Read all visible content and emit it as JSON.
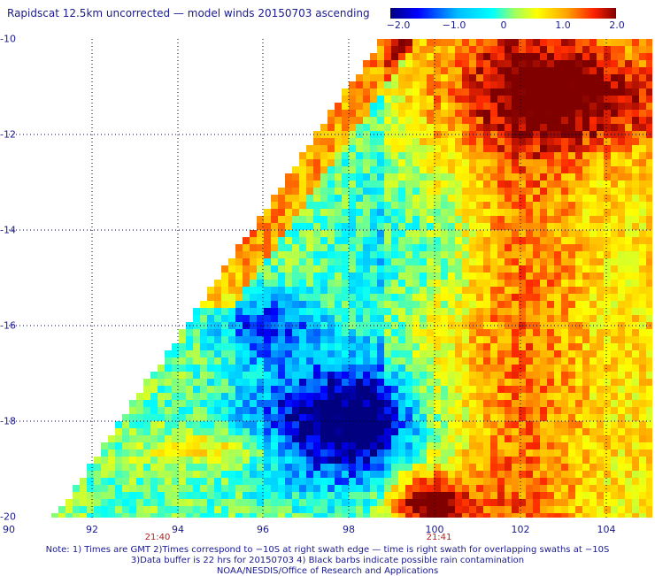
{
  "title": "Rapidscat 12.5km uncorrected — model winds 20150703 ascending",
  "colorbar": {
    "ticks": [
      "−2.0",
      "−1.0",
      "0",
      "1.0",
      "2.0"
    ],
    "min": -2.0,
    "max": 2.0,
    "colors": [
      "#000080",
      "#0000ff",
      "#00bfff",
      "#00ffff",
      "#7fff7f",
      "#ffff00",
      "#ffa500",
      "#ff3300",
      "#a00000",
      "#800000"
    ]
  },
  "map": {
    "lon_ticks": [
      "90",
      "92",
      "94",
      "96",
      "98",
      "100",
      "102",
      "104"
    ],
    "lat_ticks": [
      "-10",
      "-12",
      "-14",
      "-16",
      "-18",
      "-20"
    ],
    "lon_range": [
      90,
      104.6
    ],
    "lat_range": [
      -20,
      -10
    ],
    "grid": "dotted",
    "time_labels": [
      {
        "text": "21:40",
        "lon": 93.4
      },
      {
        "text": "21:41",
        "lon": 99.6
      }
    ]
  },
  "notes": [
    "Note: 1) Times are GMT 2)Times correspond to −10S at right swath edge — time is right swath for overlapping swaths at −10S",
    "3)Data buffer is 22 hrs for 20150703 4) Black barbs indicate possible rain contamination",
    "NOAA/NESDIS/Office of Research and Applications"
  ]
}
